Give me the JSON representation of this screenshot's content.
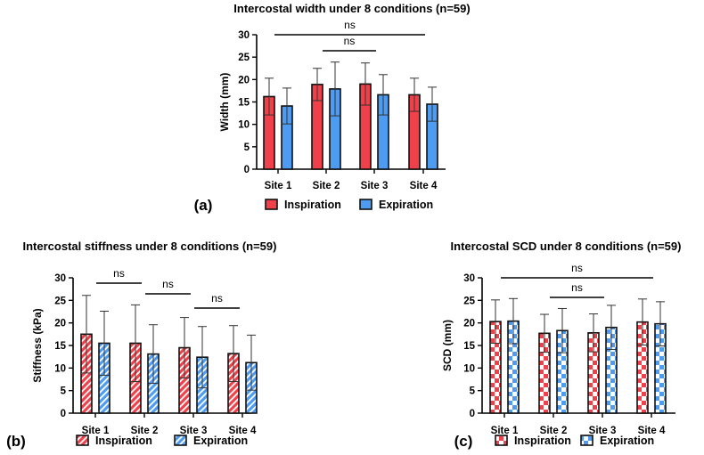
{
  "chart_data": [
    {
      "type": "bar",
      "panel": "(a)",
      "title": "Intercostal width under 8 conditions (n=59)",
      "ylabel": "Width (mm)",
      "xlabel": "",
      "ylim": [
        0,
        30
      ],
      "yticks": [
        0,
        5,
        10,
        15,
        20,
        25,
        30
      ],
      "categories": [
        "Site 1",
        "Site 2",
        "Site 3",
        "Site 4"
      ],
      "fill_style": "solid",
      "series": [
        {
          "name": "Inspiration",
          "color": "#f0404a",
          "values": [
            16.2,
            18.9,
            19.0,
            16.6
          ],
          "sd": [
            4.1,
            3.6,
            4.7,
            3.7
          ]
        },
        {
          "name": "Expiration",
          "color": "#4d9cf2",
          "values": [
            14.1,
            17.9,
            16.6,
            14.5
          ],
          "sd": [
            4.0,
            6.0,
            4.5,
            3.8
          ]
        }
      ],
      "annotations": [
        {
          "text": "ns",
          "from": "Site 1",
          "to": "Site 4",
          "level": 1
        },
        {
          "text": "ns",
          "from": "Site 2",
          "to": "Site 3",
          "level": 2
        }
      ],
      "legend": "bottom"
    },
    {
      "type": "bar",
      "panel": "(b)",
      "title": "Intercostal stiffness under 8 conditions (n=59)",
      "ylabel": "Stiffness (kPa)",
      "xlabel": "",
      "ylim": [
        0,
        30
      ],
      "yticks": [
        0,
        5,
        10,
        15,
        20,
        25,
        30
      ],
      "categories": [
        "Site 1",
        "Site 2",
        "Site 3",
        "Site 4"
      ],
      "fill_style": "hatch",
      "series": [
        {
          "name": "Inspiration",
          "color": "#f0404a",
          "values": [
            17.5,
            15.5,
            14.5,
            13.2
          ],
          "sd": [
            8.6,
            8.5,
            6.7,
            6.2
          ]
        },
        {
          "name": "Expiration",
          "color": "#4d9cf2",
          "values": [
            15.5,
            13.1,
            12.4,
            11.2
          ],
          "sd": [
            7.1,
            6.5,
            6.8,
            6.1
          ]
        }
      ],
      "annotations": [
        {
          "text": "ns",
          "from": "Site 1",
          "to": "Site 2",
          "level": 1
        },
        {
          "text": "ns",
          "from": "Site 2",
          "to": "Site 3",
          "level": 2
        },
        {
          "text": "ns",
          "from": "Site 3",
          "to": "Site 4",
          "level": 3
        }
      ],
      "legend": "bottom"
    },
    {
      "type": "bar",
      "panel": "(c)",
      "title": "Intercostal SCD under 8 conditions (n=59)",
      "ylabel": "SCD (mm)",
      "xlabel": "",
      "ylim": [
        0,
        30
      ],
      "yticks": [
        0,
        5,
        10,
        15,
        20,
        25,
        30
      ],
      "categories": [
        "Site 1",
        "Site 2",
        "Site 3",
        "Site 4"
      ],
      "fill_style": "checker",
      "series": [
        {
          "name": "Inspiration",
          "color": "#f0404a",
          "values": [
            20.3,
            17.7,
            17.8,
            20.2
          ],
          "sd": [
            4.8,
            4.2,
            4.2,
            5.1
          ]
        },
        {
          "name": "Expiration",
          "color": "#4d9cf2",
          "values": [
            20.4,
            18.3,
            19.0,
            19.8
          ],
          "sd": [
            5.0,
            4.9,
            4.9,
            4.9
          ]
        }
      ],
      "annotations": [
        {
          "text": "ns",
          "from": "Site 1",
          "to": "Site 4",
          "level": 1
        },
        {
          "text": "ns",
          "from": "Site 2",
          "to": "Site 3",
          "level": 2
        }
      ],
      "legend": "bottom"
    }
  ]
}
